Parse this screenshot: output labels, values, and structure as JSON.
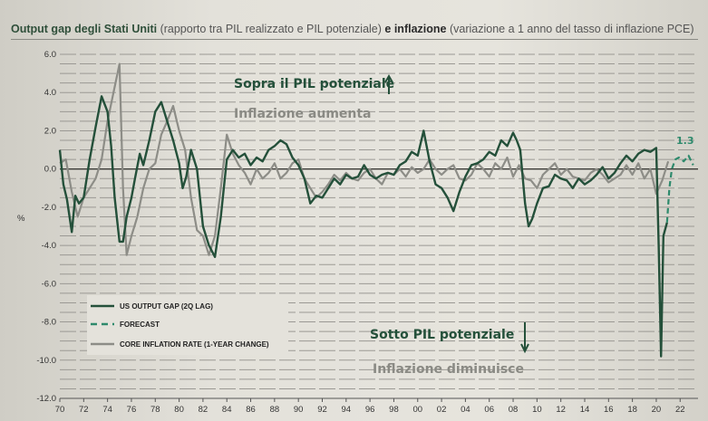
{
  "title": {
    "part1_bold": "Output gap degli Stati Uniti",
    "part2": " (rapporto tra PIL realizzato e PIL potenziale) ",
    "part3_bold": "e inflazione",
    "part4": " (variazione a 1 anno del tasso di inflazione PCE)"
  },
  "chart_data": {
    "type": "line",
    "ylabel": "%",
    "ylim": [
      -12,
      6
    ],
    "xlim": [
      1970,
      2023.5
    ],
    "yticks": [
      6.0,
      4.0,
      2.0,
      0.0,
      -2.0,
      -4.0,
      -6.0,
      -8.0,
      -10.0,
      -12.0
    ],
    "ytick_labels": [
      "6.0",
      "4.0",
      "2.0",
      "0.0",
      "-2.0",
      "-4.0",
      "-6.0",
      "-8.0",
      "-10.0",
      "-12.0"
    ],
    "xticks": [
      1970,
      1972,
      1974,
      1976,
      1978,
      1980,
      1982,
      1984,
      1986,
      1988,
      1990,
      1992,
      1994,
      1996,
      1998,
      2000,
      2002,
      2004,
      2006,
      2008,
      2010,
      2012,
      2014,
      2016,
      2018,
      2020,
      2022
    ],
    "xtick_labels": [
      "70",
      "72",
      "74",
      "76",
      "78",
      "80",
      "82",
      "84",
      "86",
      "88",
      "90",
      "92",
      "94",
      "96",
      "98",
      "00",
      "02",
      "04",
      "06",
      "08",
      "10",
      "12",
      "14",
      "16",
      "18",
      "20",
      "22"
    ],
    "grid": true,
    "legend_placement": "bottom-left",
    "series": [
      {
        "name": "US OUTPUT GAP (2Q LAG)",
        "color": "#24503a",
        "style": "solid",
        "x": [
          1970.0,
          1970.3,
          1970.6,
          1971.0,
          1971.3,
          1971.6,
          1972.0,
          1972.5,
          1973.0,
          1973.5,
          1974.0,
          1974.3,
          1974.6,
          1975.0,
          1975.3,
          1975.6,
          1976.0,
          1976.3,
          1976.7,
          1977.0,
          1977.5,
          1978.0,
          1978.5,
          1979.0,
          1979.5,
          1980.0,
          1980.3,
          1980.6,
          1981.0,
          1981.5,
          1982.0,
          1982.5,
          1983.0,
          1983.5,
          1984.0,
          1984.5,
          1985.0,
          1985.5,
          1986.0,
          1986.5,
          1987.0,
          1987.5,
          1988.0,
          1988.5,
          1989.0,
          1989.5,
          1990.0,
          1990.5,
          1991.0,
          1991.5,
          1992.0,
          1992.5,
          1993.0,
          1993.5,
          1994.0,
          1994.5,
          1995.0,
          1995.5,
          1996.0,
          1996.5,
          1997.0,
          1997.5,
          1998.0,
          1998.5,
          1999.0,
          1999.5,
          2000.0,
          2000.5,
          2001.0,
          2001.5,
          2002.0,
          2002.5,
          2003.0,
          2003.5,
          2004.0,
          2004.5,
          2005.0,
          2005.5,
          2006.0,
          2006.5,
          2007.0,
          2007.5,
          2008.0,
          2008.3,
          2008.6,
          2009.0,
          2009.3,
          2009.6,
          2010.0,
          2010.5,
          2011.0,
          2011.5,
          2012.0,
          2012.5,
          2013.0,
          2013.5,
          2014.0,
          2014.5,
          2015.0,
          2015.5,
          2016.0,
          2016.5,
          2017.0,
          2017.5,
          2018.0,
          2018.5,
          2019.0,
          2019.5,
          2020.0,
          2020.2,
          2020.4,
          2020.6,
          2020.9
        ],
        "values": [
          1.0,
          -0.8,
          -1.6,
          -3.3,
          -1.4,
          -1.8,
          -1.5,
          0.5,
          2.2,
          3.8,
          3.0,
          1.2,
          -1.5,
          -3.8,
          -3.8,
          -2.5,
          -1.5,
          -0.5,
          0.8,
          0.2,
          1.5,
          3.0,
          3.5,
          2.5,
          1.5,
          0.3,
          -1.0,
          -0.4,
          1.0,
          0.0,
          -3.0,
          -4.0,
          -4.6,
          -2.5,
          0.5,
          1.0,
          0.6,
          0.8,
          0.2,
          0.6,
          0.4,
          1.0,
          1.2,
          1.5,
          1.3,
          0.6,
          0.2,
          -0.5,
          -1.8,
          -1.4,
          -1.5,
          -1.0,
          -0.5,
          -0.8,
          -0.3,
          -0.5,
          -0.4,
          0.2,
          -0.3,
          -0.5,
          -0.3,
          -0.2,
          -0.3,
          0.2,
          0.4,
          0.9,
          0.7,
          2.0,
          0.4,
          -0.8,
          -1.0,
          -1.5,
          -2.2,
          -1.2,
          -0.4,
          0.2,
          0.3,
          0.5,
          0.9,
          0.7,
          1.5,
          1.2,
          1.9,
          1.5,
          1.0,
          -1.8,
          -3.0,
          -2.6,
          -1.8,
          -1.0,
          -0.9,
          -0.3,
          -0.5,
          -0.6,
          -1.0,
          -0.5,
          -0.8,
          -0.6,
          -0.3,
          0.1,
          -0.5,
          -0.2,
          0.3,
          0.7,
          0.4,
          0.8,
          1.0,
          0.9,
          1.1,
          -4.0,
          -9.8,
          -3.5,
          -2.8
        ]
      },
      {
        "name": "FORECAST",
        "color": "#2e8a6c",
        "style": "dashed",
        "x": [
          2020.9,
          2021.1,
          2021.3,
          2021.6,
          2021.9,
          2022.3,
          2022.7,
          2023.1
        ],
        "values": [
          -2.8,
          -1.0,
          0.0,
          0.5,
          0.6,
          0.4,
          0.7,
          0.2
        ]
      },
      {
        "name": "CORE INFLATION RATE (1-YEAR CHANGE)",
        "color": "#8d8d87",
        "style": "solid",
        "x": [
          1970.0,
          1970.5,
          1971.0,
          1971.5,
          1972.0,
          1972.5,
          1973.0,
          1973.5,
          1974.0,
          1974.5,
          1975.0,
          1975.3,
          1975.6,
          1976.0,
          1976.5,
          1977.0,
          1977.5,
          1978.0,
          1978.5,
          1979.0,
          1979.5,
          1980.0,
          1980.5,
          1981.0,
          1981.5,
          1982.0,
          1982.5,
          1983.0,
          1983.5,
          1984.0,
          1984.5,
          1985.0,
          1985.5,
          1986.0,
          1986.5,
          1987.0,
          1987.5,
          1988.0,
          1988.5,
          1989.0,
          1989.5,
          1990.0,
          1990.5,
          1991.0,
          1991.5,
          1992.0,
          1992.5,
          1993.0,
          1993.5,
          1994.0,
          1994.5,
          1995.0,
          1995.5,
          1996.0,
          1996.5,
          1997.0,
          1997.5,
          1998.0,
          1998.5,
          1999.0,
          1999.5,
          2000.0,
          2000.5,
          2001.0,
          2001.5,
          2002.0,
          2002.5,
          2003.0,
          2003.5,
          2004.0,
          2004.5,
          2005.0,
          2005.5,
          2006.0,
          2006.5,
          2007.0,
          2007.5,
          2008.0,
          2008.5,
          2009.0,
          2009.5,
          2010.0,
          2010.5,
          2011.0,
          2011.5,
          2012.0,
          2012.5,
          2013.0,
          2013.5,
          2014.0,
          2014.5,
          2015.0,
          2015.5,
          2016.0,
          2016.5,
          2017.0,
          2017.5,
          2018.0,
          2018.5,
          2019.0,
          2019.5,
          2020.0,
          2020.5,
          2021.0
        ],
        "values": [
          0.3,
          0.5,
          -1.2,
          -2.5,
          -1.5,
          -1.0,
          -0.5,
          0.5,
          2.5,
          4.0,
          5.5,
          -1.0,
          -4.5,
          -3.5,
          -2.5,
          -1.0,
          0.0,
          0.3,
          1.8,
          2.5,
          3.3,
          2.0,
          1.0,
          -1.5,
          -3.2,
          -3.5,
          -4.5,
          -3.5,
          -1.0,
          1.8,
          0.8,
          0.2,
          -0.2,
          -0.8,
          0.0,
          -0.5,
          -0.2,
          0.3,
          -0.5,
          -0.2,
          0.3,
          0.5,
          -0.5,
          -1.0,
          -1.5,
          -1.2,
          -0.8,
          -0.3,
          -0.6,
          -0.2,
          -0.5,
          -0.6,
          -0.2,
          0.0,
          -0.5,
          -0.8,
          -0.2,
          -0.3,
          0.0,
          -0.4,
          0.1,
          -0.2,
          0.0,
          0.5,
          0.0,
          -0.3,
          0.0,
          0.2,
          -0.5,
          -0.6,
          -0.3,
          0.3,
          0.0,
          -0.4,
          0.3,
          0.0,
          0.6,
          -0.4,
          0.2,
          -0.5,
          -0.6,
          -1.0,
          -0.3,
          0.0,
          0.3,
          -0.3,
          0.0,
          -0.4,
          -0.5,
          -0.6,
          -0.2,
          0.0,
          -0.3,
          -0.7,
          -0.5,
          -0.3,
          0.2,
          -0.3,
          0.3,
          -0.5,
          0.0,
          -1.3,
          -0.6,
          0.4
        ]
      }
    ],
    "annotations": {
      "above": "Sopra il PIL potenziale",
      "above_sub": "Inflazione aumenta",
      "below": "Sotto PIL potenziale",
      "below_sub": "Inflazione diminuisce",
      "forecast_value": "1.3"
    }
  }
}
